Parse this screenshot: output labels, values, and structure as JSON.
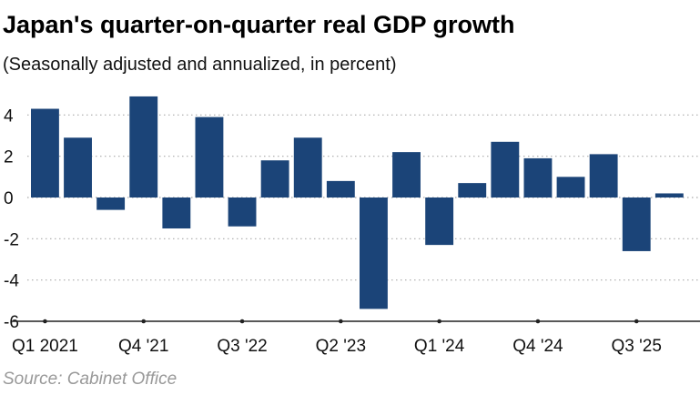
{
  "title": "Japan's quarter-on-quarter real GDP growth",
  "subtitle": "(Seasonally adjusted and annualized, in percent)",
  "source": "Source: Cabinet Office",
  "colors": {
    "bar": "#1b4478",
    "grid": "#a9a9a9",
    "axis": "#222222"
  },
  "chart_data": {
    "type": "bar",
    "title": "Japan's quarter-on-quarter real GDP growth",
    "subtitle": "(Seasonally adjusted and annualized, in percent)",
    "xlabel": "",
    "ylabel": "",
    "ylim": [
      -6,
      4.8
    ],
    "yticks": [
      4,
      2,
      0,
      -2,
      -4,
      -6
    ],
    "ytick_labels": [
      "4",
      "2",
      "0",
      "-2",
      "-4",
      "-6"
    ],
    "grid": "horizontal dotted",
    "categories": [
      "Q1 2021",
      "Q2 2021",
      "Q3 2021",
      "Q4 2021",
      "Q1 2022",
      "Q2 2022",
      "Q3 2022",
      "Q4 2022",
      "Q1 2023",
      "Q2 2023",
      "Q3 2023",
      "Q4 2023",
      "Q1 2024",
      "Q2 2024",
      "Q3 2024",
      "Q4 2024",
      "Q1 2025",
      "Q2 2025",
      "Q3 2025",
      "Q4 2025"
    ],
    "values": [
      4.3,
      2.9,
      -0.6,
      4.9,
      -1.5,
      3.9,
      -1.4,
      1.8,
      2.9,
      0.8,
      -5.4,
      2.2,
      -2.3,
      0.7,
      2.7,
      1.9,
      1.0,
      2.1,
      -2.6,
      0.2
    ],
    "xtick_labels": [
      {
        "index": 0,
        "label": "Q1 2021"
      },
      {
        "index": 3,
        "label": "Q4 '21"
      },
      {
        "index": 6,
        "label": "Q3 '22"
      },
      {
        "index": 9,
        "label": "Q2 '23"
      },
      {
        "index": 12,
        "label": "Q1 '24"
      },
      {
        "index": 15,
        "label": "Q4 '24"
      },
      {
        "index": 18,
        "label": "Q3 '25"
      }
    ]
  }
}
